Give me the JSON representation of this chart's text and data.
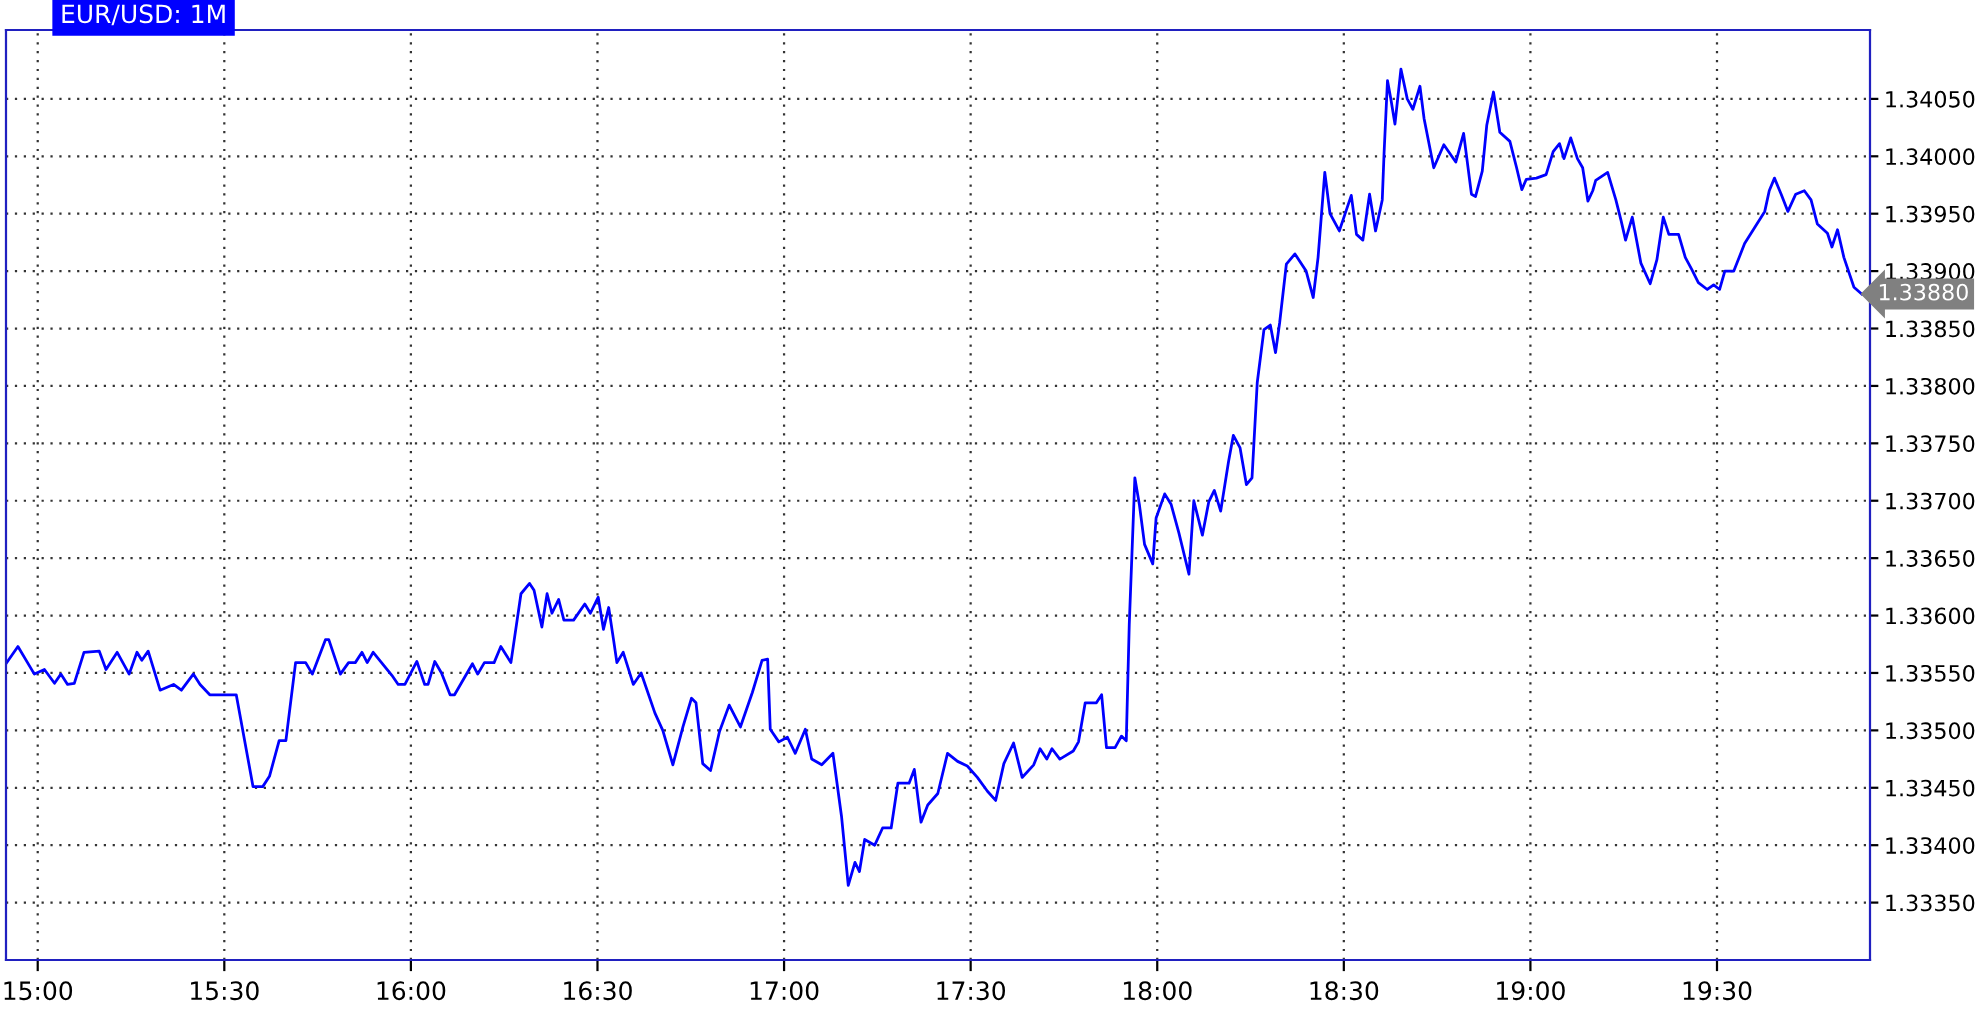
{
  "chart_data": {
    "type": "line",
    "title": "EUR/USD: 1M",
    "x": [
      14.917,
      14.947,
      14.991,
      15.018,
      15.045,
      15.062,
      15.08,
      15.098,
      15.124,
      15.165,
      15.183,
      15.213,
      15.245,
      15.266,
      15.279,
      15.296,
      15.328,
      15.364,
      15.385,
      15.417,
      15.435,
      15.461,
      15.532,
      15.577,
      15.603,
      15.621,
      15.647,
      15.665,
      15.691,
      15.718,
      15.736,
      15.771,
      15.78,
      15.811,
      15.833,
      15.851,
      15.869,
      15.883,
      15.899,
      15.949,
      15.966,
      15.984,
      16.016,
      16.037,
      16.046,
      16.064,
      16.082,
      16.105,
      16.117,
      16.165,
      16.179,
      16.197,
      16.223,
      16.241,
      16.268,
      16.277,
      16.295,
      16.318,
      16.33,
      16.351,
      16.365,
      16.378,
      16.396,
      16.41,
      16.436,
      16.466,
      16.481,
      16.502,
      16.516,
      16.53,
      16.543,
      16.552,
      16.569,
      16.596,
      16.617,
      16.654,
      16.675,
      16.702,
      16.729,
      16.752,
      16.764,
      16.782,
      16.803,
      16.827,
      16.853,
      16.883,
      16.915,
      16.941,
      16.956,
      16.963,
      16.986,
      17.009,
      17.03,
      17.057,
      17.074,
      17.101,
      17.131,
      17.154,
      17.172,
      17.19,
      17.202,
      17.216,
      17.243,
      17.264,
      17.287,
      17.305,
      17.335,
      17.349,
      17.367,
      17.385,
      17.412,
      17.438,
      17.465,
      17.491,
      17.518,
      17.545,
      17.567,
      17.589,
      17.615,
      17.638,
      17.669,
      17.686,
      17.704,
      17.718,
      17.739,
      17.775,
      17.789,
      17.807,
      17.837,
      17.851,
      17.864,
      17.887,
      17.904,
      17.917,
      17.925,
      17.94,
      17.952,
      17.966,
      17.988,
      17.997,
      18.02,
      18.037,
      18.058,
      18.085,
      18.098,
      18.121,
      18.138,
      18.153,
      18.17,
      18.191,
      18.204,
      18.222,
      18.239,
      18.254,
      18.268,
      18.286,
      18.303,
      18.317,
      18.328,
      18.346,
      18.369,
      18.399,
      18.418,
      18.431,
      18.449,
      18.463,
      18.488,
      18.52,
      18.534,
      18.551,
      18.569,
      18.585,
      18.603,
      18.608,
      18.617,
      18.626,
      18.637,
      18.653,
      18.67,
      18.685,
      18.704,
      18.715,
      18.741,
      18.768,
      18.8,
      18.821,
      18.842,
      18.853,
      18.871,
      18.883,
      18.901,
      18.918,
      18.945,
      18.963,
      18.977,
      18.989,
      19.016,
      19.042,
      19.061,
      19.078,
      19.09,
      19.108,
      19.126,
      19.14,
      19.154,
      19.167,
      19.175,
      19.207,
      19.229,
      19.243,
      19.255,
      19.273,
      19.296,
      19.321,
      19.339,
      19.356,
      19.371,
      19.397,
      19.415,
      19.433,
      19.45,
      19.474,
      19.491,
      19.507,
      19.521,
      19.545,
      19.574,
      19.601,
      19.628,
      19.64,
      19.654,
      19.672,
      19.69,
      19.711,
      19.734,
      19.752,
      19.769,
      19.796,
      19.808,
      19.823,
      19.84,
      19.867,
      19.888
    ],
    "series": [
      {
        "color": "#0000ff",
        "values": [
          1.33559,
          1.33573,
          1.33549,
          1.33553,
          1.33541,
          1.33549,
          1.3354,
          1.33541,
          1.33568,
          1.33569,
          1.33553,
          1.33568,
          1.33549,
          1.33568,
          1.33561,
          1.33569,
          1.33535,
          1.3354,
          1.33535,
          1.33549,
          1.3354,
          1.33531,
          1.33531,
          1.33451,
          1.33451,
          1.3346,
          1.33491,
          1.33491,
          1.33559,
          1.33559,
          1.33549,
          1.33579,
          1.33579,
          1.33549,
          1.33559,
          1.33559,
          1.33568,
          1.33559,
          1.33568,
          1.33548,
          1.3354,
          1.3354,
          1.3356,
          1.3354,
          1.3354,
          1.3356,
          1.3355,
          1.33531,
          1.33531,
          1.33558,
          1.33549,
          1.33559,
          1.33559,
          1.33573,
          1.33559,
          1.33579,
          1.33619,
          1.33628,
          1.33622,
          1.3359,
          1.33619,
          1.33602,
          1.33614,
          1.33596,
          1.33596,
          1.3361,
          1.33602,
          1.33616,
          1.33588,
          1.33607,
          1.33579,
          1.33559,
          1.33568,
          1.3354,
          1.3355,
          1.33515,
          1.335,
          1.3347,
          1.33503,
          1.33528,
          1.33524,
          1.33471,
          1.33465,
          1.33499,
          1.33522,
          1.33503,
          1.33533,
          1.33561,
          1.33562,
          1.33501,
          1.3349,
          1.33494,
          1.3348,
          1.33501,
          1.33475,
          1.3347,
          1.3348,
          1.33425,
          1.33365,
          1.33385,
          1.33377,
          1.33405,
          1.334,
          1.33415,
          1.33415,
          1.33454,
          1.33454,
          1.33466,
          1.3342,
          1.33435,
          1.33445,
          1.3348,
          1.33473,
          1.33469,
          1.33459,
          1.33447,
          1.33439,
          1.33471,
          1.33489,
          1.33459,
          1.3347,
          1.33484,
          1.33475,
          1.33484,
          1.33475,
          1.33482,
          1.3349,
          1.33524,
          1.33524,
          1.33531,
          1.33485,
          1.33485,
          1.33495,
          1.33491,
          1.33592,
          1.3372,
          1.33697,
          1.33662,
          1.33645,
          1.33685,
          1.33706,
          1.33697,
          1.33672,
          1.33636,
          1.337,
          1.3367,
          1.33699,
          1.33709,
          1.33691,
          1.33734,
          1.33757,
          1.33746,
          1.33714,
          1.3372,
          1.33803,
          1.33849,
          1.33853,
          1.33829,
          1.33855,
          1.33906,
          1.33915,
          1.339,
          1.33877,
          1.33912,
          1.33986,
          1.3395,
          1.33935,
          1.33966,
          1.33932,
          1.33927,
          1.33967,
          1.33935,
          1.33962,
          1.34004,
          1.34066,
          1.3405,
          1.34028,
          1.34076,
          1.3405,
          1.34041,
          1.34061,
          1.34033,
          1.3399,
          1.3401,
          1.33995,
          1.3402,
          1.33967,
          1.33965,
          1.33987,
          1.34027,
          1.34056,
          1.34021,
          1.34013,
          1.3399,
          1.33971,
          1.3398,
          1.33981,
          1.33984,
          1.34004,
          1.34011,
          1.33998,
          1.34016,
          1.33998,
          1.3399,
          1.33961,
          1.3397,
          1.33979,
          1.33986,
          1.33962,
          1.33944,
          1.33927,
          1.33947,
          1.33907,
          1.33889,
          1.3391,
          1.33947,
          1.33932,
          1.33932,
          1.33912,
          1.33901,
          1.3389,
          1.33884,
          1.33888,
          1.33884,
          1.339,
          1.339,
          1.33924,
          1.33938,
          1.33952,
          1.3397,
          1.33981,
          1.33967,
          1.33952,
          1.33967,
          1.3397,
          1.33962,
          1.33941,
          1.33933,
          1.33921,
          1.33936,
          1.33912,
          1.33886,
          1.3388
        ]
      }
    ],
    "xlim": [
      14.915,
      19.91
    ],
    "ylim": [
      1.333,
      1.3411
    ],
    "xticks": [
      {
        "value": 15.0,
        "label": "15:00"
      },
      {
        "value": 15.5,
        "label": "15:30"
      },
      {
        "value": 16.0,
        "label": "16:00"
      },
      {
        "value": 16.5,
        "label": "16:30"
      },
      {
        "value": 17.0,
        "label": "17:00"
      },
      {
        "value": 17.5,
        "label": "17:30"
      },
      {
        "value": 18.0,
        "label": "18:00"
      },
      {
        "value": 18.5,
        "label": "18:30"
      },
      {
        "value": 19.0,
        "label": "19:00"
      },
      {
        "value": 19.5,
        "label": "19:30"
      }
    ],
    "yticks": [
      {
        "value": 1.3335,
        "label": "1.33350"
      },
      {
        "value": 1.334,
        "label": "1.33400"
      },
      {
        "value": 1.3345,
        "label": "1.33450"
      },
      {
        "value": 1.335,
        "label": "1.33500"
      },
      {
        "value": 1.3355,
        "label": "1.33550"
      },
      {
        "value": 1.336,
        "label": "1.33600"
      },
      {
        "value": 1.3365,
        "label": "1.33650"
      },
      {
        "value": 1.337,
        "label": "1.33700"
      },
      {
        "value": 1.3375,
        "label": "1.33750"
      },
      {
        "value": 1.338,
        "label": "1.33800"
      },
      {
        "value": 1.3385,
        "label": "1.33850"
      },
      {
        "value": 1.339,
        "label": "1.33900"
      },
      {
        "value": 1.3395,
        "label": "1.33950"
      },
      {
        "value": 1.34,
        "label": "1.34000"
      },
      {
        "value": 1.3405,
        "label": "1.34050"
      }
    ],
    "annotations": [
      "1.33880"
    ],
    "grid": true,
    "line_style": "solid",
    "marker": "none",
    "legend": false
  }
}
